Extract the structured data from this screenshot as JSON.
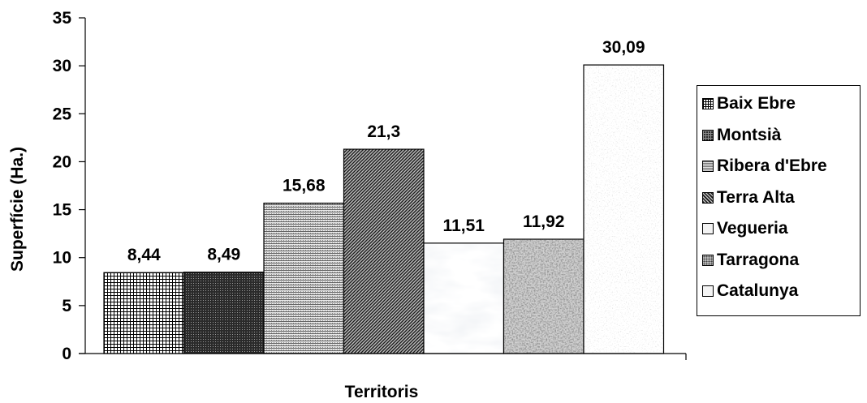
{
  "chart_data": {
    "type": "bar",
    "title": "",
    "xlabel": "Territoris",
    "ylabel": "Superfície (Ha.)",
    "ylim": [
      0,
      35
    ],
    "yticks": [
      0,
      5,
      10,
      15,
      20,
      25,
      30,
      35
    ],
    "ytick_labels": [
      "0",
      "5",
      "10",
      "15",
      "20",
      "25",
      "30",
      "35"
    ],
    "legend_position": "right",
    "grid": false,
    "series": [
      {
        "name": "Baix Ebre",
        "value": 8.44,
        "label": "8,44",
        "fill": "pat-grid"
      },
      {
        "name": "Montsià",
        "value": 8.49,
        "label": "8,49",
        "fill": "pat-darkgrid"
      },
      {
        "name": "Ribera d'Ebre",
        "value": 15.68,
        "label": "15,68",
        "fill": "pat-fine"
      },
      {
        "name": "Terra Alta",
        "value": 21.3,
        "label": "21,3",
        "fill": "pat-diag"
      },
      {
        "name": "Vegueria",
        "value": 11.51,
        "label": "11,51",
        "fill": "pat-marble"
      },
      {
        "name": "Tarragona",
        "value": 11.92,
        "label": "11,92",
        "fill": "pat-granite"
      },
      {
        "name": "Catalunya",
        "value": 30.09,
        "label": "30,09",
        "fill": "pat-light"
      }
    ]
  }
}
